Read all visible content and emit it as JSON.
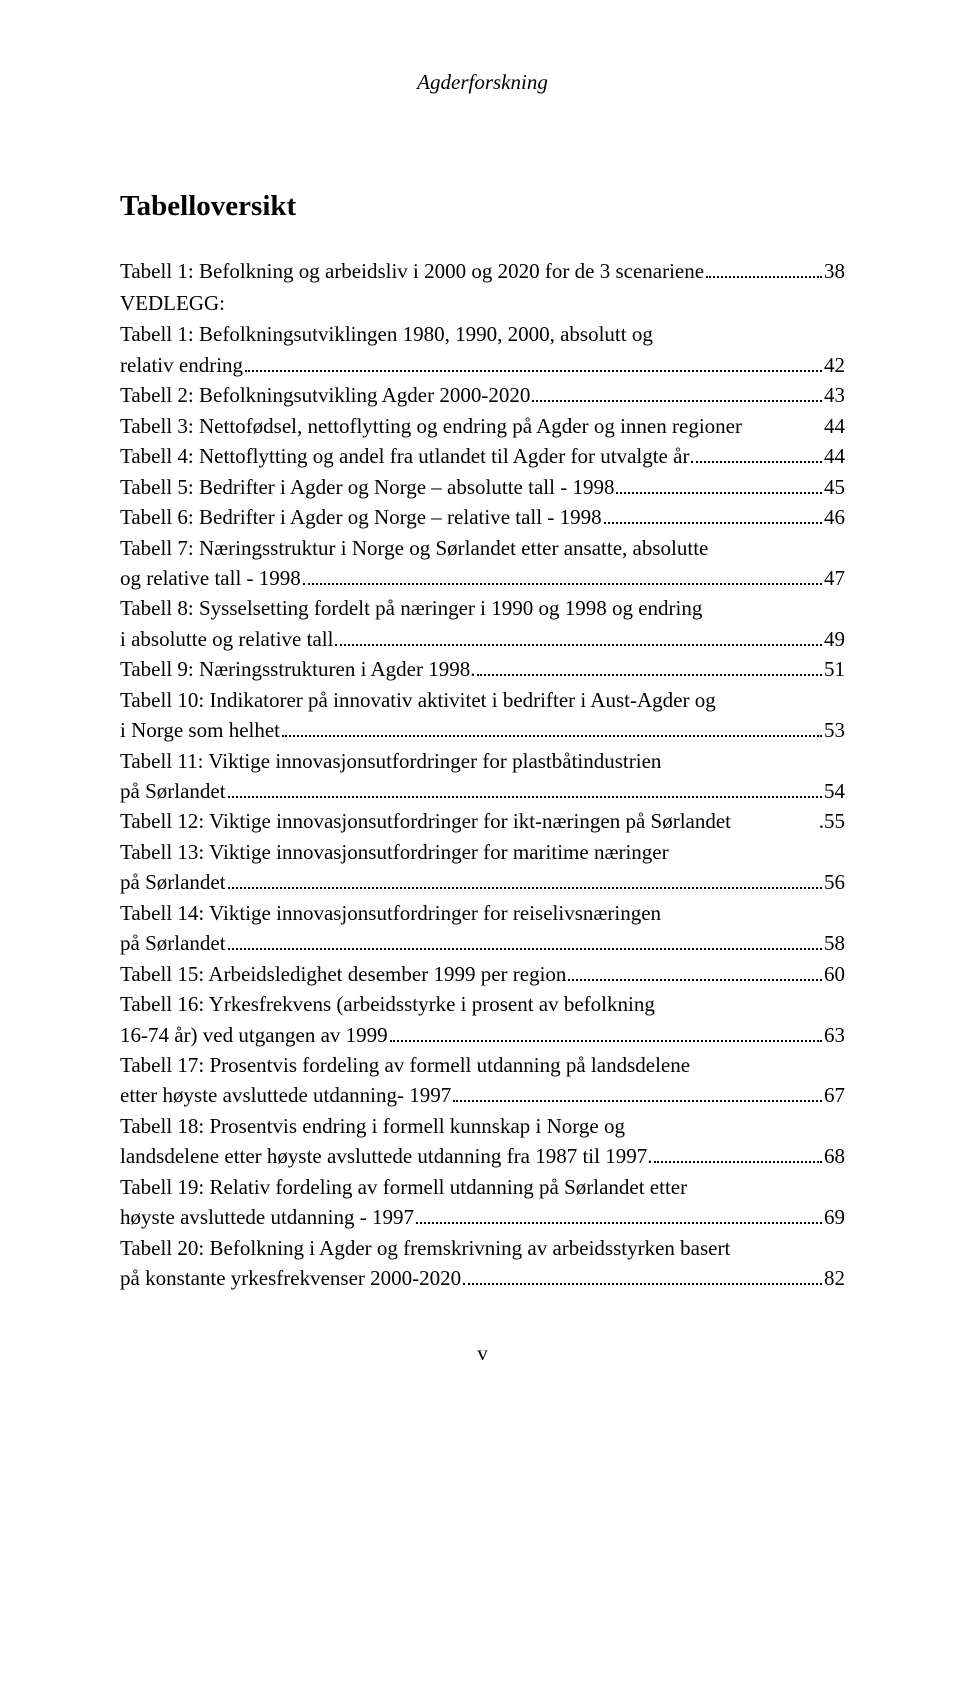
{
  "header": "Agderforskning",
  "heading": "Tabelloversikt",
  "vedlegg_label": "VEDLEGG:",
  "entries_top": [
    {
      "label": "Tabell 1: Befolkning og arbeidsliv i 2000 og 2020 for de 3 scenariene",
      "page": "38"
    }
  ],
  "entries": [
    {
      "lines": [
        "Tabell 1: Befolkningsutviklingen 1980, 1990, 2000, absolutt og",
        "relativ endring"
      ],
      "page": "42"
    },
    {
      "lines": [
        "Tabell 2: Befolkningsutvikling Agder 2000-2020"
      ],
      "page": "43"
    },
    {
      "lines": [
        "Tabell 3: Nettofødsel, nettoflytting og endring på Agder og innen regioner"
      ],
      "page": "44",
      "no_leader": true
    },
    {
      "lines": [
        "Tabell 4: Nettoflytting og andel fra utlandet til Agder for utvalgte år"
      ],
      "page": "44"
    },
    {
      "lines": [
        "Tabell 5: Bedrifter i Agder og Norge – absolutte tall - 1998"
      ],
      "page": "45"
    },
    {
      "lines": [
        "Tabell 6: Bedrifter i Agder og Norge – relative tall - 1998"
      ],
      "page": "46"
    },
    {
      "lines": [
        "Tabell 7: Næringsstruktur i Norge og Sørlandet etter ansatte, absolutte",
        "og relative tall - 1998"
      ],
      "page": "47"
    },
    {
      "lines": [
        "Tabell 8: Sysselsetting fordelt på næringer i 1990 og 1998 og endring",
        "i absolutte og relative tall"
      ],
      "page": "49"
    },
    {
      "lines": [
        "Tabell 9: Næringsstrukturen i Agder 1998."
      ],
      "page": "51"
    },
    {
      "lines": [
        "Tabell 10: Indikatorer på innovativ aktivitet i bedrifter i Aust-Agder og",
        "i Norge som helhet"
      ],
      "page": "53"
    },
    {
      "lines": [
        "Tabell 11: Viktige innovasjonsutfordringer for plastbåtindustrien",
        "på Sørlandet"
      ],
      "page": "54"
    },
    {
      "lines": [
        "Tabell 12: Viktige innovasjonsutfordringer for ikt-næringen på Sørlandet"
      ],
      "page": "55",
      "dot_leader": true
    },
    {
      "lines": [
        "Tabell 13: Viktige innovasjonsutfordringer for maritime næringer",
        "på Sørlandet"
      ],
      "page": "56"
    },
    {
      "lines": [
        "Tabell 14: Viktige innovasjonsutfordringer for reiselivsnæringen",
        "på Sørlandet"
      ],
      "page": "58"
    },
    {
      "lines": [
        "Tabell 15: Arbeidsledighet desember 1999 per region"
      ],
      "page": "60"
    },
    {
      "lines": [
        "Tabell 16: Yrkesfrekvens (arbeidsstyrke i prosent av befolkning",
        "16-74 år) ved utgangen av 1999"
      ],
      "page": "63"
    },
    {
      "lines": [
        "Tabell 17: Prosentvis fordeling av formell utdanning på landsdelene",
        "etter høyste avsluttede utdanning- 1997"
      ],
      "page": "67"
    },
    {
      "lines": [
        "Tabell 18: Prosentvis endring i formell kunnskap i Norge og",
        "landsdelene etter høyste avsluttede utdanning fra 1987 til 1997."
      ],
      "page": "68"
    },
    {
      "lines": [
        "Tabell 19: Relativ fordeling av formell utdanning på Sørlandet etter",
        "høyste avsluttede utdanning - 1997"
      ],
      "page": "69"
    },
    {
      "lines": [
        "Tabell 20: Befolkning i Agder og fremskrivning av arbeidsstyrken basert",
        "på konstante yrkesfrekvenser 2000-2020"
      ],
      "page": "82"
    }
  ],
  "footer_page": "v"
}
